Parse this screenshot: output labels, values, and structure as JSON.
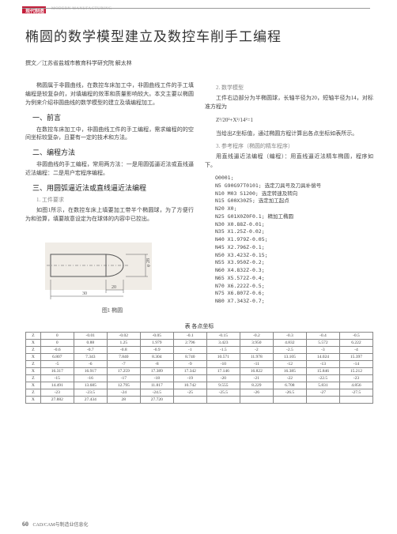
{
  "header": {
    "cn": "现代制造",
    "en": "MODERN MANUFACTURING"
  },
  "title": "椭圆的数学模型建立及数控车削手工编程",
  "author": "撰文／江苏省盐城市教育科学研究院  解太林",
  "intro": "椭圆属于非圆曲线，在数控车床加工中，非圆曲线工件的手工填编程是较复杂的，对填编程的效率和质量影响较大。本文主要以椭圆为例来介绍非圆曲线的数学模型的建立及填编程加工。",
  "s1": {
    "t": "一、前言",
    "p": "在数控车床加工中，非圆曲线工件的手工编程，需求编程的的空间坐标较复杂，且要有一定的技术和方法。"
  },
  "s2": {
    "t": "二、编程方法",
    "p": "非圆曲线的手工编程，常用两方法：一是用圆弧逼近法或直线逼近法编程：二是用户宏程序编程。"
  },
  "s3": {
    "t": "三、用圆弧逼近法或直线逼近法编程",
    "sub": "1. 工件要求",
    "p": "如图1所示，在数控车床上填要加工带半个椭圆球，为了方便行为和验算，填要故意设定为在球体的内容中已控出。"
  },
  "s4": {
    "sub": "2. 数学模型",
    "p1": "工件右边部分为半椭圆球，长轴半径为20，短轴半径为14，对标准方程为",
    "eq": "Z²/20²+X²/14²=1",
    "p2": "当给出Z坐标值，通过椭圆方程计算出各点坐标如表所示。",
    "sub2": "3. 参考程序（椭圆的精车程序）",
    "p3": "用直线逼近法编程（编程）：用直线逼近法精车椭圆，程序如下。"
  },
  "code": [
    "O0001;",
    "N5  G90G97T0101;  选定刀具号及刀具补偿号",
    "N10 M03 S1200;    选定转速及转向",
    "N15 G00X30Z5;     选定加工起点",
    "N20 X0;",
    "N25 G01X0Z0F0.1;  精加工椭圆",
    "N30 X0.88Z-0.01;",
    "N35 X1.25Z-0.02;",
    "N40 X1.979Z-0.05;",
    "N45 X2.796Z-0.1;",
    "N50 X3.423Z-0.15;",
    "N55 X3.950Z-0.2;",
    "N60 X4.832Z-0.3;",
    "N65 X5.572Z-0.4;",
    "N70 X6.222Z-0.5;",
    "N75 X6.807Z-0.6;",
    "N80 X7.343Z-0.7;"
  ],
  "figCaption": "图1  椭圆",
  "tableTitle": "表  各点坐标",
  "diagram": {
    "w": 170,
    "h": 95,
    "dim1": "φ 28",
    "dim2": "20",
    "dim3": "30",
    "bg": "#f0ece6",
    "stroke": "#555"
  },
  "table": {
    "cols": 11,
    "rows": [
      [
        "Z",
        "0",
        "-0.01",
        "-0.02",
        "-0.05",
        "-0.1",
        "-0.15",
        "-0.2",
        "-0.3",
        "-0.4",
        "-0.5"
      ],
      [
        "X",
        "0",
        "0.88",
        "1.25",
        "1.979",
        "2.796",
        "3.423",
        "3.950",
        "4.832",
        "5.572",
        "6.222"
      ],
      [
        "Z",
        "-0.6",
        "-0.7",
        "-0.8",
        "-0.9",
        "-1",
        "-1.5",
        "-2",
        "-2.5",
        "-3",
        "-4"
      ],
      [
        "X",
        "6.807",
        "7.343",
        "7.840",
        "8.304",
        "8.740",
        "10.571",
        "11.978",
        "13.105",
        "14.024",
        "15.397"
      ],
      [
        "Z",
        "-5",
        "-6",
        "-7",
        "-8",
        "-9",
        "-10",
        "-11",
        "-12",
        "-13",
        "-14"
      ],
      [
        "X",
        "16.317",
        "16.917",
        "17.259",
        "17.389",
        "17.342",
        "17.146",
        "16.822",
        "16.385",
        "15.846",
        "15.212"
      ],
      [
        "Z",
        "-15",
        "-16",
        "-17",
        "-18",
        "-19",
        "-20",
        "-21",
        "-22",
        "-22.5",
        "-23"
      ],
      [
        "X",
        "14.491",
        "13.685",
        "12.795",
        "11.817",
        "10.742",
        "9.555",
        "8.229",
        "6.708",
        "5.831",
        "4.856"
      ],
      [
        "Z",
        "-23",
        "-23.5",
        "-24",
        "-24.5",
        "-25",
        "-25.5",
        "-26",
        "-26.5",
        "-27",
        "-27.5"
      ],
      [
        "X",
        "27.882",
        "27.434",
        "28",
        "27.720",
        "",
        "",
        "",
        "",
        "",
        ""
      ]
    ]
  },
  "footer": {
    "page": "60",
    "txt": "CAD/CAM与制造业信息化"
  }
}
